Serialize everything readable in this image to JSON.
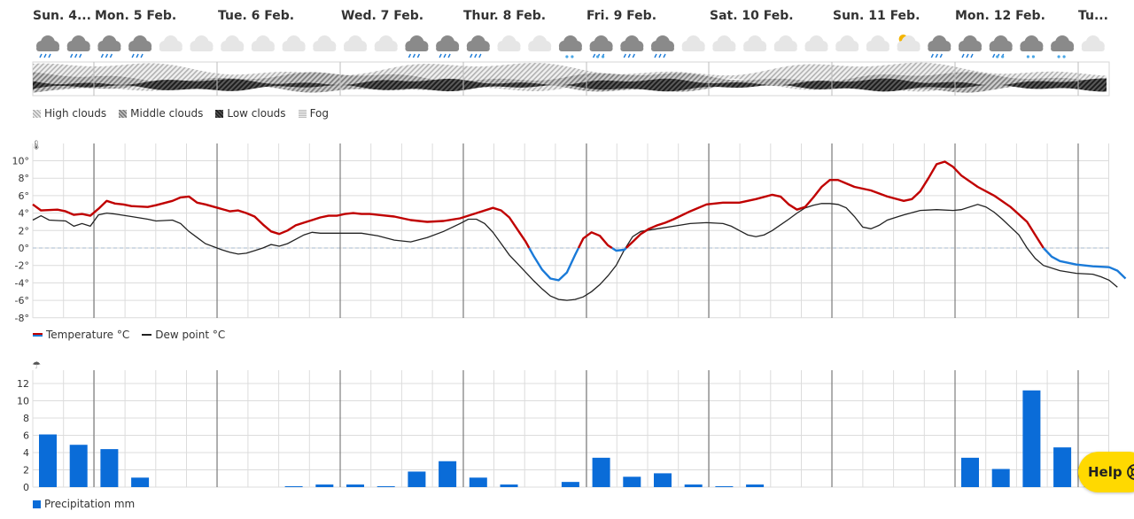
{
  "days": [
    "Sun. 4...",
    "Mon. 5 Feb.",
    "Tue. 6 Feb.",
    "Wed. 7 Feb.",
    "Thur. 8 Feb.",
    "Fri. 9 Feb.",
    "Sat. 10 Feb.",
    "Sun. 11 Feb.",
    "Mon. 12 Feb.",
    "Tu..."
  ],
  "weather_icons": [
    "rain-cloud",
    "rain-cloud",
    "rain-cloud",
    "rain-cloud",
    "cloud",
    "cloud",
    "cloud",
    "cloud",
    "cloud",
    "cloud",
    "cloud",
    "cloud",
    "rain-cloud",
    "rain-cloud",
    "rain-cloud",
    "cloud",
    "cloud",
    "snow-cloud",
    "sleet-cloud",
    "rain-cloud",
    "rain-cloud",
    "cloud",
    "cloud",
    "cloud",
    "cloud",
    "cloud",
    "cloud",
    "cloud",
    "sun-cloud",
    "rain-cloud",
    "rain-cloud",
    "sleet-cloud",
    "snow-cloud",
    "snow-cloud",
    "cloud"
  ],
  "cloud_legend": {
    "high": "High clouds",
    "middle": "Middle clouds",
    "low": "Low clouds",
    "fog": "Fog"
  },
  "temp_legend": {
    "temperature": "Temperature °C",
    "dewpoint": "Dew point °C"
  },
  "precip_legend": {
    "label": "Precipitation mm"
  },
  "help": {
    "label": "Help"
  },
  "colors": {
    "temp_warm": "#c00000",
    "temp_cold": "#1a7ad8",
    "dewpoint": "#222222",
    "precip": "#0a6cd8",
    "help_bg": "#ffd900"
  },
  "chart_data": [
    {
      "type": "line",
      "name": "temperature",
      "x_unit": "hours since first column",
      "y_ticks": [
        "10°",
        "8°",
        "6°",
        "4°",
        "2°",
        "0°",
        "-2°",
        "-4°",
        "-6°",
        "-8°"
      ],
      "ylim": [
        -8,
        10
      ],
      "series": [
        {
          "name": "Temperature °C",
          "points": [
            [
              0,
              5
            ],
            [
              2,
              4.3
            ],
            [
              6,
              4.4
            ],
            [
              8,
              4.2
            ],
            [
              10,
              3.8
            ],
            [
              12,
              3.9
            ],
            [
              14,
              3.7
            ],
            [
              16,
              4.5
            ],
            [
              18,
              5.4
            ],
            [
              20,
              5.1
            ],
            [
              22,
              5
            ],
            [
              24,
              4.8
            ],
            [
              28,
              4.7
            ],
            [
              30,
              4.9
            ],
            [
              34,
              5.4
            ],
            [
              36,
              5.8
            ],
            [
              38,
              5.9
            ],
            [
              40,
              5.2
            ],
            [
              42,
              5
            ],
            [
              45,
              4.6
            ],
            [
              48,
              4.2
            ],
            [
              50,
              4.3
            ],
            [
              52,
              4
            ],
            [
              54,
              3.6
            ],
            [
              56,
              2.7
            ],
            [
              58,
              1.9
            ],
            [
              60,
              1.6
            ],
            [
              62,
              2
            ],
            [
              64,
              2.6
            ],
            [
              66,
              2.9
            ],
            [
              68,
              3.2
            ],
            [
              70,
              3.5
            ],
            [
              72,
              3.7
            ],
            [
              74,
              3.7
            ],
            [
              76,
              3.9
            ],
            [
              78,
              4
            ],
            [
              80,
              3.9
            ],
            [
              82,
              3.9
            ],
            [
              84,
              3.8
            ],
            [
              88,
              3.6
            ],
            [
              92,
              3.2
            ],
            [
              96,
              3
            ],
            [
              100,
              3.1
            ],
            [
              104,
              3.4
            ],
            [
              108,
              4
            ],
            [
              112,
              4.6
            ],
            [
              114,
              4.3
            ],
            [
              116,
              3.5
            ],
            [
              118,
              2.1
            ],
            [
              120,
              0.7
            ],
            [
              122,
              -1
            ],
            [
              124,
              -2.5
            ],
            [
              126,
              -3.5
            ],
            [
              128,
              -3.7
            ],
            [
              130,
              -2.8
            ],
            [
              132,
              -0.8
            ],
            [
              134,
              1.1
            ],
            [
              136,
              1.8
            ],
            [
              138,
              1.4
            ],
            [
              140,
              0.3
            ],
            [
              142,
              -0.3
            ],
            [
              144,
              -0.2
            ],
            [
              146,
              0.7
            ],
            [
              148,
              1.6
            ],
            [
              150,
              2.2
            ],
            [
              152,
              2.6
            ],
            [
              154,
              2.9
            ],
            [
              156,
              3.3
            ],
            [
              160,
              4.2
            ],
            [
              164,
              5
            ],
            [
              168,
              5.2
            ],
            [
              172,
              5.2
            ],
            [
              176,
              5.6
            ],
            [
              180,
              6.1
            ],
            [
              182,
              5.9
            ],
            [
              184,
              5
            ],
            [
              186,
              4.4
            ],
            [
              188,
              4.7
            ],
            [
              190,
              5.8
            ],
            [
              192,
              7
            ],
            [
              194,
              7.8
            ],
            [
              196,
              7.8
            ],
            [
              198,
              7.4
            ],
            [
              200,
              7
            ],
            [
              204,
              6.6
            ],
            [
              208,
              5.9
            ],
            [
              212,
              5.4
            ],
            [
              214,
              5.6
            ],
            [
              216,
              6.5
            ],
            [
              218,
              8
            ],
            [
              220,
              9.6
            ],
            [
              222,
              9.9
            ],
            [
              224,
              9.3
            ],
            [
              226,
              8.3
            ],
            [
              230,
              7
            ],
            [
              234,
              6
            ],
            [
              238,
              4.7
            ],
            [
              242,
              3
            ],
            [
              244,
              1.5
            ],
            [
              246,
              0
            ],
            [
              248,
              -1
            ],
            [
              250,
              -1.5
            ],
            [
              254,
              -1.9
            ],
            [
              258,
              -2.1
            ],
            [
              262,
              -2.2
            ],
            [
              264,
              -2.6
            ],
            [
              266,
              -3.5
            ]
          ]
        },
        {
          "name": "Dew point °C",
          "points": [
            [
              0,
              3.2
            ],
            [
              2,
              3.7
            ],
            [
              4,
              3.2
            ],
            [
              8,
              3.1
            ],
            [
              10,
              2.5
            ],
            [
              12,
              2.8
            ],
            [
              14,
              2.5
            ],
            [
              16,
              3.8
            ],
            [
              18,
              4
            ],
            [
              20,
              3.9
            ],
            [
              24,
              3.6
            ],
            [
              28,
              3.3
            ],
            [
              30,
              3.1
            ],
            [
              34,
              3.2
            ],
            [
              36,
              2.8
            ],
            [
              38,
              1.9
            ],
            [
              40,
              1.2
            ],
            [
              42,
              0.5
            ],
            [
              46,
              -0.2
            ],
            [
              48,
              -0.5
            ],
            [
              50,
              -0.7
            ],
            [
              52,
              -0.6
            ],
            [
              54,
              -0.3
            ],
            [
              56,
              0
            ],
            [
              58,
              0.4
            ],
            [
              60,
              0.2
            ],
            [
              62,
              0.5
            ],
            [
              64,
              1
            ],
            [
              66,
              1.5
            ],
            [
              68,
              1.8
            ],
            [
              70,
              1.7
            ],
            [
              72,
              1.7
            ],
            [
              76,
              1.7
            ],
            [
              80,
              1.7
            ],
            [
              84,
              1.4
            ],
            [
              88,
              0.9
            ],
            [
              92,
              0.7
            ],
            [
              96,
              1.2
            ],
            [
              100,
              1.9
            ],
            [
              104,
              2.8
            ],
            [
              106,
              3.3
            ],
            [
              108,
              3.3
            ],
            [
              110,
              2.8
            ],
            [
              112,
              1.8
            ],
            [
              114,
              0.5
            ],
            [
              116,
              -0.8
            ],
            [
              118,
              -1.8
            ],
            [
              120,
              -2.8
            ],
            [
              122,
              -3.8
            ],
            [
              124,
              -4.7
            ],
            [
              126,
              -5.5
            ],
            [
              128,
              -5.9
            ],
            [
              130,
              -6
            ],
            [
              132,
              -5.9
            ],
            [
              134,
              -5.6
            ],
            [
              136,
              -5
            ],
            [
              138,
              -4.2
            ],
            [
              140,
              -3.2
            ],
            [
              142,
              -2
            ],
            [
              144,
              -0.2
            ],
            [
              146,
              1.3
            ],
            [
              148,
              1.9
            ],
            [
              152,
              2.2
            ],
            [
              156,
              2.5
            ],
            [
              160,
              2.8
            ],
            [
              164,
              2.9
            ],
            [
              168,
              2.8
            ],
            [
              170,
              2.5
            ],
            [
              172,
              2
            ],
            [
              174,
              1.5
            ],
            [
              176,
              1.3
            ],
            [
              178,
              1.5
            ],
            [
              180,
              2
            ],
            [
              184,
              3.3
            ],
            [
              186,
              4
            ],
            [
              188,
              4.6
            ],
            [
              190,
              4.9
            ],
            [
              192,
              5.1
            ],
            [
              194,
              5.1
            ],
            [
              196,
              5
            ],
            [
              198,
              4.6
            ],
            [
              200,
              3.6
            ],
            [
              202,
              2.4
            ],
            [
              204,
              2.2
            ],
            [
              206,
              2.6
            ],
            [
              208,
              3.2
            ],
            [
              212,
              3.8
            ],
            [
              216,
              4.3
            ],
            [
              220,
              4.4
            ],
            [
              224,
              4.3
            ],
            [
              226,
              4.4
            ],
            [
              230,
              5
            ],
            [
              232,
              4.7
            ],
            [
              234,
              4.1
            ],
            [
              236,
              3.3
            ],
            [
              240,
              1.5
            ],
            [
              242,
              0
            ],
            [
              244,
              -1.2
            ],
            [
              246,
              -2
            ],
            [
              250,
              -2.6
            ],
            [
              254,
              -2.9
            ],
            [
              258,
              -3
            ],
            [
              260,
              -3.3
            ],
            [
              262,
              -3.7
            ],
            [
              264,
              -4.5
            ]
          ]
        }
      ]
    },
    {
      "type": "bar",
      "name": "precipitation",
      "y_ticks": [
        "12",
        "10",
        "8",
        "6",
        "4",
        "2",
        "0"
      ],
      "ylim": [
        0,
        12
      ],
      "series": [
        {
          "name": "Precipitation mm",
          "values": [
            6.1,
            4.9,
            4.4,
            1.1,
            0,
            0,
            0,
            0,
            0.1,
            0.3,
            0.3,
            0.1,
            1.8,
            3,
            1.1,
            0.3,
            0,
            0.6,
            3.4,
            1.2,
            1.6,
            0.3,
            0.1,
            0.3,
            0,
            0,
            0,
            0,
            0,
            0,
            3.4,
            2.1,
            11.2,
            4.6,
            2.1
          ]
        }
      ]
    }
  ]
}
